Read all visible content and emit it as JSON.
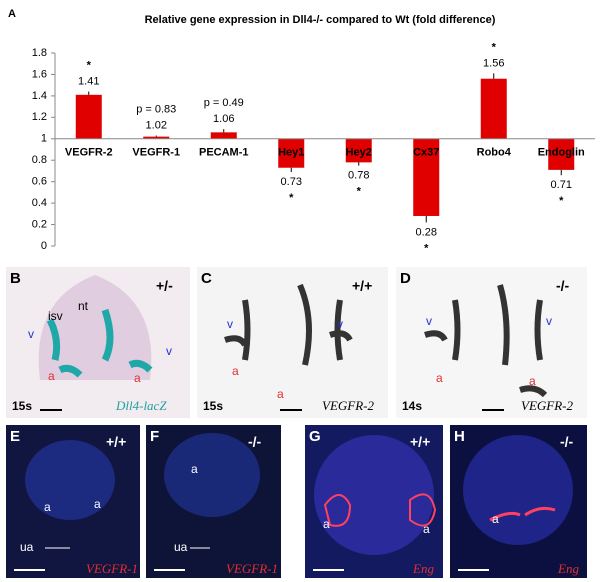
{
  "chart_data": {
    "type": "bar",
    "panel_label": "A",
    "title": "Relative gene expression in Dll4-/- compared to Wt (fold difference)",
    "categories": [
      "VEGFR-2",
      "VEGFR-1",
      "PECAM-1",
      "Hey1",
      "Hey2",
      "Cx37",
      "Robo4",
      "Endoglin"
    ],
    "values": [
      1.41,
      1.02,
      1.06,
      0.73,
      0.78,
      0.28,
      1.56,
      0.71
    ],
    "errors": [
      0.03,
      0.01,
      0.03,
      0.04,
      0.03,
      0.06,
      0.05,
      0.05
    ],
    "annotations": [
      "*",
      "p = 0.83",
      "p = 0.49",
      "*",
      "*",
      "*",
      "*",
      "*"
    ],
    "color": "#e00000",
    "baseline": 1,
    "ylim": [
      0,
      1.8
    ],
    "yticks": [
      0,
      0.2,
      0.4,
      0.6,
      0.8,
      1,
      1.2,
      1.4,
      1.6,
      1.8
    ]
  },
  "panels": [
    {
      "letter": "B",
      "labels": [
        "+/-",
        "isv",
        "nt",
        "v",
        "v",
        "a",
        "a",
        "15s",
        "Dll4-lacZ"
      ]
    },
    {
      "letter": "C",
      "labels": [
        "+/+",
        "v",
        "v",
        "a",
        "a",
        "15s",
        "VEGFR-2"
      ]
    },
    {
      "letter": "D",
      "labels": [
        "-/-",
        "v",
        "v",
        "a",
        "a",
        "14s",
        "VEGFR-2"
      ]
    },
    {
      "letter": "E",
      "labels": [
        "+/+",
        "a",
        "a",
        "ua",
        "VEGFR-1"
      ]
    },
    {
      "letter": "F",
      "labels": [
        "-/-",
        "a",
        "ua",
        "VEGFR-1"
      ]
    },
    {
      "letter": "G",
      "labels": [
        "+/+",
        "a",
        "a",
        "Eng"
      ]
    },
    {
      "letter": "H",
      "labels": [
        "-/-",
        "a",
        "Eng"
      ]
    }
  ]
}
